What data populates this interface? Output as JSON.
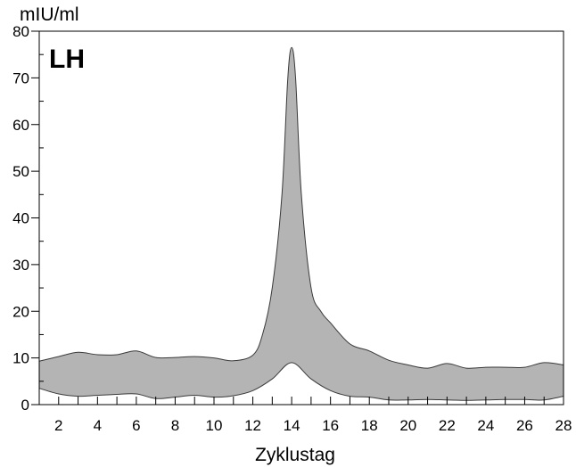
{
  "chart_data": {
    "type": "area",
    "title": "LH",
    "unit_label": "mIU/ml",
    "xlabel": "Zyklustag",
    "ylabel": "",
    "xlim": [
      1,
      28
    ],
    "ylim": [
      0,
      80
    ],
    "x_ticks": [
      2,
      4,
      6,
      8,
      10,
      12,
      14,
      16,
      18,
      20,
      22,
      24,
      26,
      28
    ],
    "y_ticks": [
      0,
      10,
      20,
      30,
      40,
      50,
      60,
      70,
      80
    ],
    "grid": false,
    "legend": "none",
    "fill_color": "#b4b4b4",
    "series": [
      {
        "upper": [
          [
            1,
            9.3
          ],
          [
            2,
            10.3
          ],
          [
            3,
            11.2
          ],
          [
            4,
            10.7
          ],
          [
            5,
            10.7
          ],
          [
            6,
            11.5
          ],
          [
            7,
            10.1
          ],
          [
            8,
            10.1
          ],
          [
            9,
            10.3
          ],
          [
            10,
            10.0
          ],
          [
            11,
            9.4
          ],
          [
            12,
            10.6
          ],
          [
            12.5,
            15
          ],
          [
            13,
            25
          ],
          [
            13.5,
            45
          ],
          [
            13.8,
            70
          ],
          [
            14,
            76.5
          ],
          [
            14.2,
            70
          ],
          [
            14.5,
            45
          ],
          [
            15,
            25
          ],
          [
            15.5,
            20
          ],
          [
            16,
            17.5
          ],
          [
            17,
            13
          ],
          [
            18,
            11.5
          ],
          [
            19,
            9.5
          ],
          [
            20,
            8.5
          ],
          [
            21,
            7.8
          ],
          [
            22,
            8.8
          ],
          [
            23,
            7.8
          ],
          [
            24,
            8.0
          ],
          [
            25,
            8.0
          ],
          [
            26,
            8.0
          ],
          [
            27,
            9.0
          ],
          [
            28,
            8.5
          ]
        ],
        "lower": [
          [
            1,
            3.5
          ],
          [
            2,
            2.3
          ],
          [
            3,
            1.8
          ],
          [
            4,
            2.0
          ],
          [
            5,
            2.2
          ],
          [
            6,
            2.3
          ],
          [
            7,
            1.3
          ],
          [
            8,
            1.6
          ],
          [
            9,
            2.0
          ],
          [
            10,
            1.6
          ],
          [
            11,
            1.9
          ],
          [
            12,
            3.0
          ],
          [
            13,
            5.5
          ],
          [
            14,
            9.0
          ],
          [
            15,
            5.5
          ],
          [
            16,
            3.0
          ],
          [
            17,
            1.8
          ],
          [
            18,
            1.6
          ],
          [
            19,
            1.0
          ],
          [
            20,
            1.0
          ],
          [
            21,
            1.1
          ],
          [
            22,
            1.0
          ],
          [
            23,
            0.9
          ],
          [
            24,
            1.0
          ],
          [
            25,
            1.1
          ],
          [
            26,
            1.1
          ],
          [
            27,
            1.0
          ],
          [
            28,
            1.8
          ]
        ]
      }
    ]
  }
}
